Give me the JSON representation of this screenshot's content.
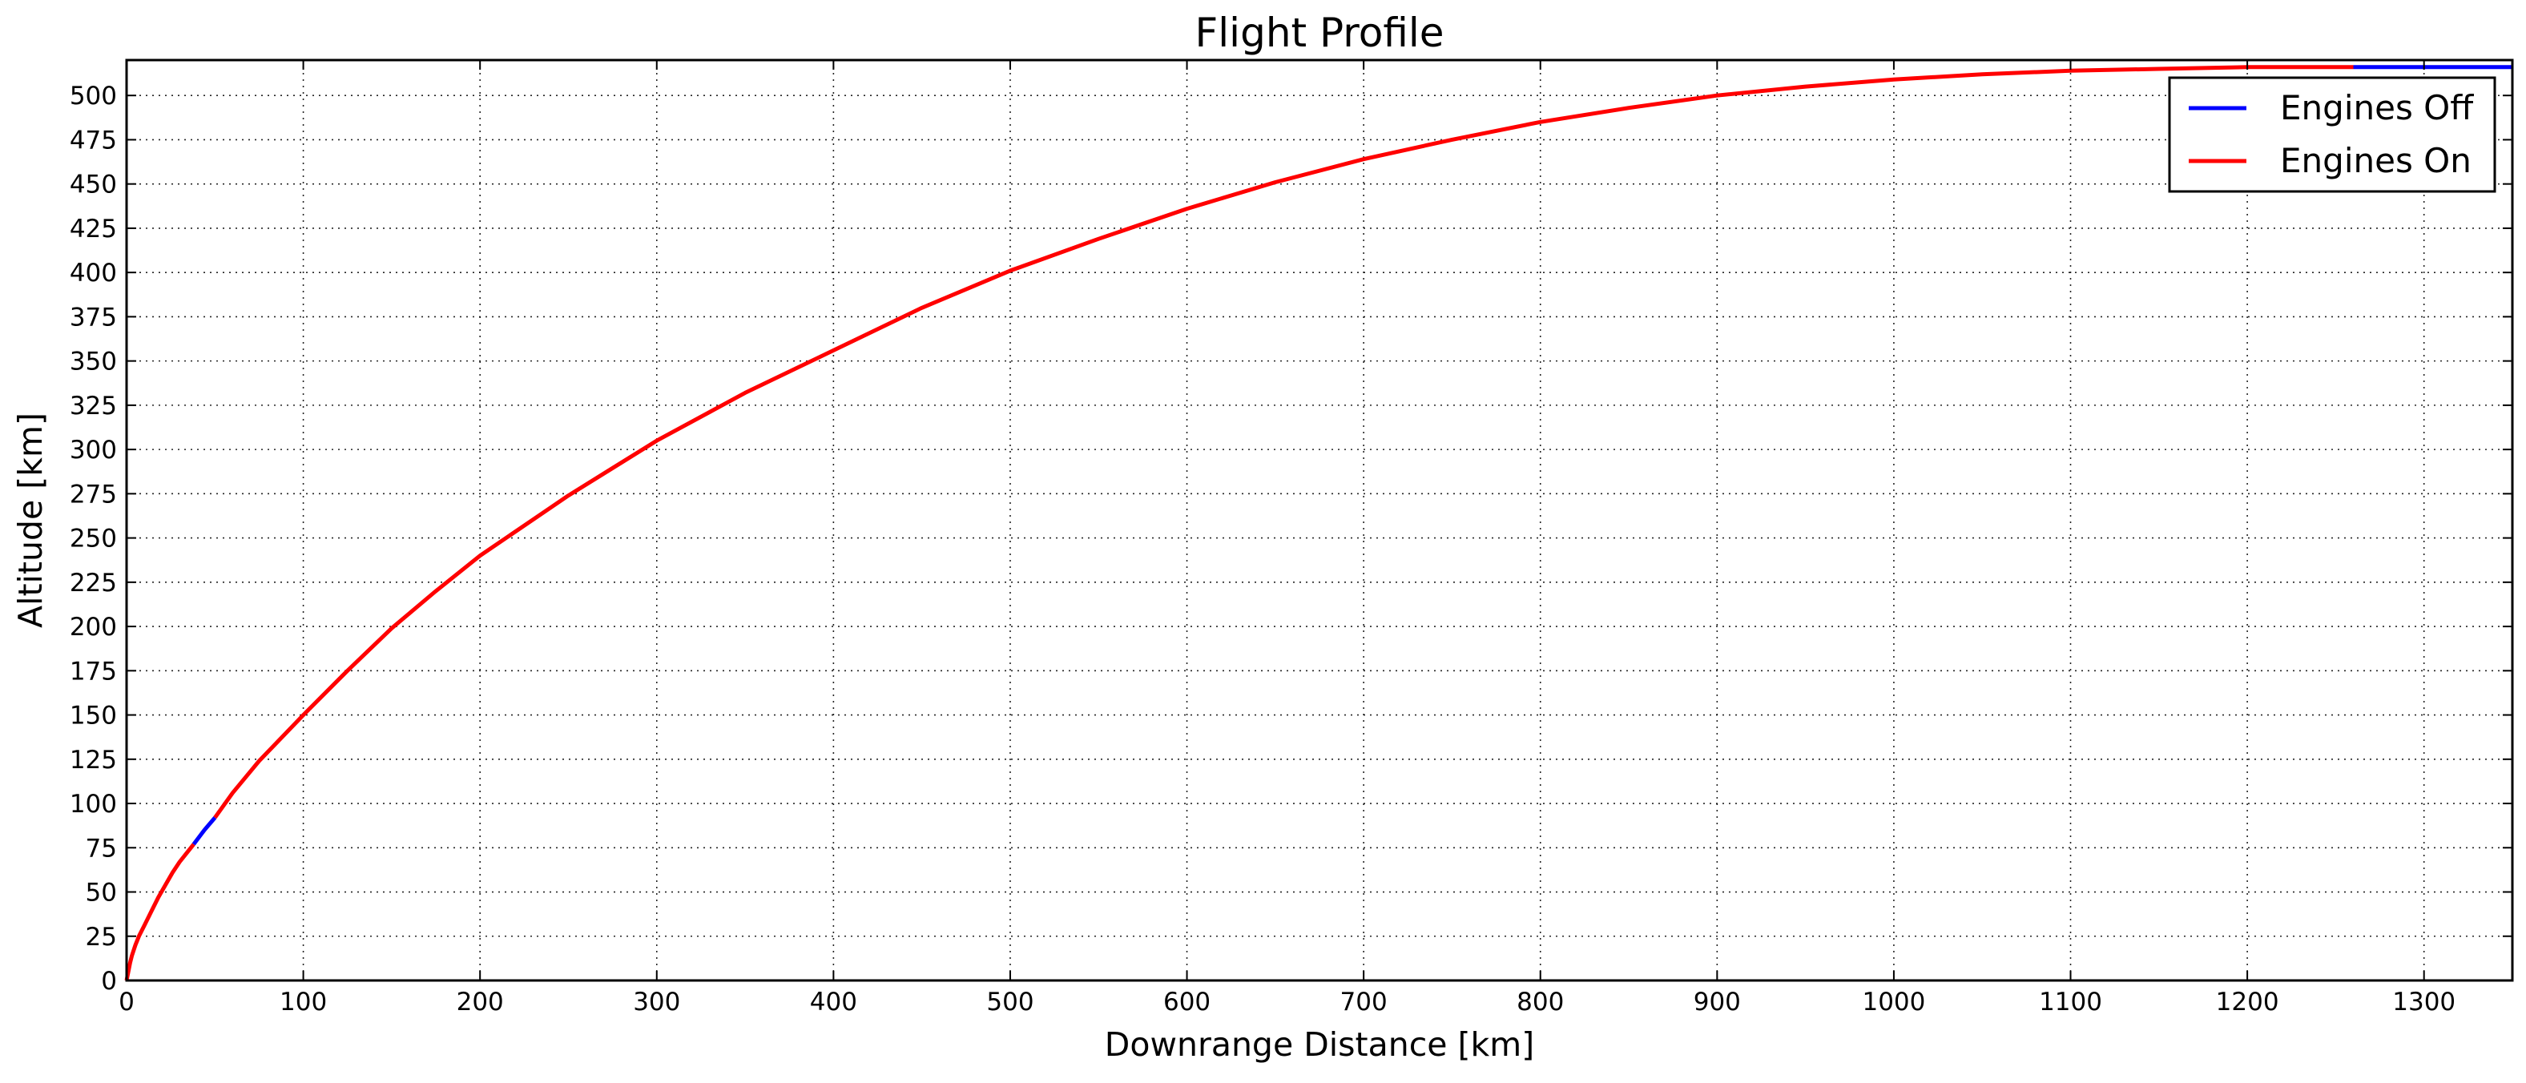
{
  "chart_data": {
    "type": "line",
    "title": "Flight Profile",
    "xlabel": "Downrange Distance [km]",
    "ylabel": "Altitude [km]",
    "xlim": [
      0,
      1350
    ],
    "ylim": [
      0,
      520
    ],
    "x_ticks": [
      0,
      100,
      200,
      300,
      400,
      500,
      600,
      700,
      800,
      900,
      1000,
      1100,
      1200,
      1300
    ],
    "y_ticks": [
      0,
      25,
      50,
      75,
      100,
      125,
      150,
      175,
      200,
      225,
      250,
      275,
      300,
      325,
      350,
      375,
      400,
      425,
      450,
      475,
      500
    ],
    "grid": true,
    "legend": {
      "position": "top-right"
    },
    "series": [
      {
        "name": "Engines Off",
        "color": "#0000ff",
        "segments": [
          {
            "x": [
              38,
              44,
              50
            ],
            "y": [
              77,
              85,
              92
            ]
          },
          {
            "x": [
              1260,
              1300,
              1350
            ],
            "y": [
              516,
              516,
              516
            ]
          }
        ]
      },
      {
        "name": "Engines On",
        "color": "#ff0000",
        "segments": [
          {
            "x": [
              0,
              1,
              2,
              3,
              5,
              7,
              10,
              14,
              18,
              22,
              26,
              30,
              34,
              38
            ],
            "y": [
              0,
              5,
              10,
              14,
              20,
              25,
              31,
              39,
              47,
              54,
              61,
              67,
              72,
              77
            ]
          },
          {
            "x": [
              50,
              60,
              75,
              100,
              125,
              150,
              175,
              200,
              250,
              300,
              350,
              400,
              450,
              500,
              550,
              600,
              650,
              700,
              750,
              800,
              850,
              900,
              950,
              1000,
              1050,
              1100,
              1150,
              1200,
              1260
            ],
            "y": [
              92,
              106,
              124,
              150,
              175,
              199,
              220,
              240,
              274,
              305,
              332,
              356,
              380,
              401,
              419,
              436,
              451,
              464,
              475,
              485,
              493,
              500,
              505,
              509,
              512,
              514,
              515,
              516,
              516
            ]
          }
        ]
      }
    ]
  }
}
